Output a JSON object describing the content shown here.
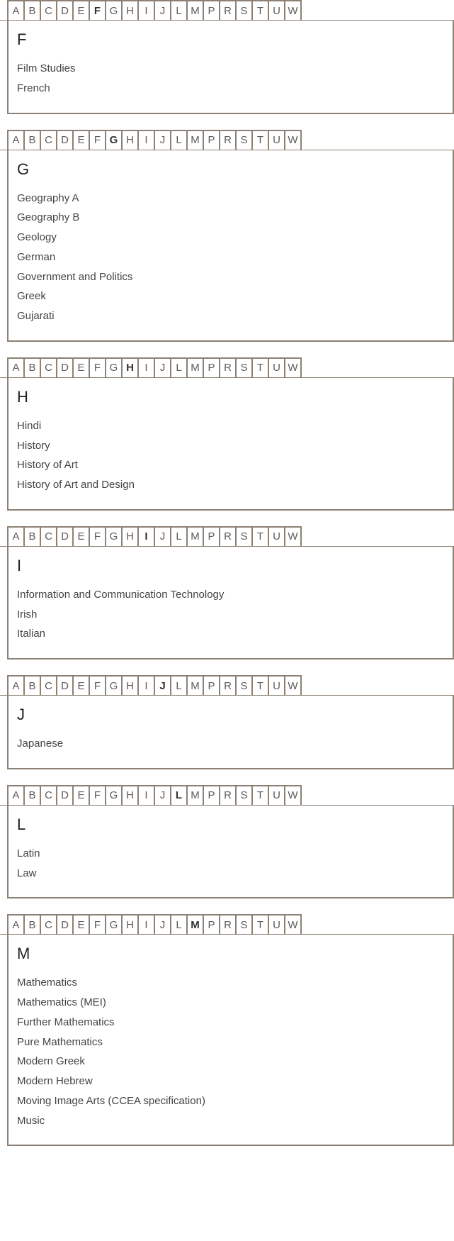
{
  "letters": [
    "A",
    "B",
    "C",
    "D",
    "E",
    "F",
    "G",
    "H",
    "I",
    "J",
    "L",
    "M",
    "P",
    "R",
    "S",
    "T",
    "U",
    "W"
  ],
  "sections": [
    {
      "heading": "F",
      "active": "F",
      "items": [
        "Film Studies",
        "French"
      ]
    },
    {
      "heading": "G",
      "active": "G",
      "items": [
        "Geography A",
        "Geography B",
        "Geology",
        "German",
        "Government and Politics",
        "Greek",
        "Gujarati"
      ]
    },
    {
      "heading": "H",
      "active": "H",
      "items": [
        "Hindi",
        "History",
        "History of Art",
        "History of Art and Design"
      ]
    },
    {
      "heading": "I",
      "active": "I",
      "items": [
        "Information and Communication Technology",
        "Irish",
        "Italian"
      ]
    },
    {
      "heading": "J",
      "active": "J",
      "items": [
        "Japanese"
      ]
    },
    {
      "heading": "L",
      "active": "L",
      "items": [
        "Latin",
        "Law"
      ]
    },
    {
      "heading": "M",
      "active": "M",
      "items": [
        "Mathematics",
        "Mathematics (MEI)",
        "Further Mathematics",
        "Pure Mathematics",
        "Modern Greek",
        "Modern Hebrew",
        "Moving Image Arts (CCEA specification)",
        "Music"
      ]
    }
  ],
  "colors": {
    "border": "#8c8174",
    "text": "#444444",
    "heading": "#222222",
    "background": "#ffffff"
  }
}
